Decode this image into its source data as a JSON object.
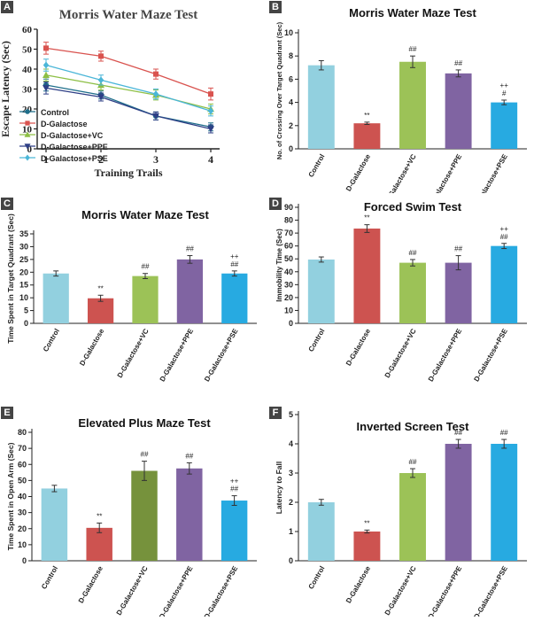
{
  "chart_data": [
    {
      "panel_label": "A",
      "type": "line",
      "title": "Morris Water Maze Test",
      "xlabel": "Training Trails",
      "ylabel": "Escape Latency (Sec)",
      "x": [
        1,
        2,
        3,
        4
      ],
      "xticks": [
        "1",
        "2",
        "3",
        "4"
      ],
      "ylim": [
        0,
        60
      ],
      "yticks": [
        "0",
        "10",
        "20",
        "30",
        "40",
        "50",
        "60"
      ],
      "series": [
        {
          "name": "Control",
          "color": "#1f6f8b",
          "marker": "circle",
          "values": [
            32,
            27,
            16.5,
            11
          ],
          "err": [
            3,
            2,
            2,
            2
          ]
        },
        {
          "name": "D-Galactose",
          "color": "#d9534f",
          "marker": "square",
          "values": [
            50.5,
            46.5,
            37.5,
            27.5
          ],
          "err": [
            3,
            2.5,
            2.5,
            3
          ]
        },
        {
          "name": "D-Galactose+VC",
          "color": "#8dbf45",
          "marker": "triangle",
          "values": [
            37,
            32,
            27,
            20
          ],
          "err": [
            3,
            2.5,
            2.5,
            2.5
          ]
        },
        {
          "name": "D-Galactose+PPE",
          "color": "#2e3f86",
          "marker": "triangle-down",
          "values": [
            30.5,
            26,
            16.5,
            10
          ],
          "err": [
            3,
            2,
            2,
            2
          ]
        },
        {
          "name": "D-Galactose+PSE",
          "color": "#4bb6d8",
          "marker": "diamond",
          "values": [
            42,
            34.5,
            27.5,
            19
          ],
          "err": [
            3,
            2.5,
            2.5,
            2.5
          ]
        }
      ]
    },
    {
      "panel_label": "B",
      "type": "bar",
      "title": "Morris Water Maze Test",
      "ylabel": "No. of Crossing Over Target Quadrant (Sec)",
      "categories": [
        "Control",
        "D-Galactose",
        "D-Galactose+VC",
        "D-Galactose+PPE",
        "D-Galactose+PSE"
      ],
      "values": [
        7.2,
        2.2,
        7.5,
        6.5,
        4.0
      ],
      "err": [
        0.4,
        0.1,
        0.5,
        0.3,
        0.2
      ],
      "annotations": [
        [],
        [
          "**"
        ],
        [
          "##"
        ],
        [
          "##"
        ],
        [
          "++",
          "#"
        ]
      ],
      "ylim": [
        0,
        10
      ],
      "yticks": [
        "0",
        "2",
        "4",
        "6",
        "8",
        "10"
      ]
    },
    {
      "panel_label": "C",
      "type": "bar",
      "title": "Morris Water Maze Test",
      "ylabel": "Time Spent in Target Quadrant (Sec)",
      "categories": [
        "Control",
        "D-Galactose",
        "D-Galactose+VC",
        "D-Galactose+PPE",
        "D-Galactose+PSE"
      ],
      "values": [
        19.5,
        9.8,
        18.5,
        25,
        19.5
      ],
      "err": [
        1,
        1.2,
        1,
        1.5,
        1
      ],
      "annotations": [
        [],
        [
          "**"
        ],
        [
          "##"
        ],
        [
          "##"
        ],
        [
          "++",
          "##"
        ]
      ],
      "ylim": [
        0,
        35
      ],
      "yticks": [
        "0",
        "5",
        "10",
        "15",
        "20",
        "25",
        "30",
        "35"
      ]
    },
    {
      "panel_label": "D",
      "type": "bar",
      "title": "Forced Swim Test",
      "ylabel": "Immobility Time (Sec)",
      "categories": [
        "Control",
        "D-Galactose",
        "D-Galactose+VC",
        "D-Galactose+PPE",
        "D-Galactose+PSE"
      ],
      "values": [
        49.5,
        73.5,
        47,
        47,
        60
      ],
      "err": [
        2,
        3,
        2.5,
        5.5,
        2
      ],
      "annotations": [
        [],
        [
          "**"
        ],
        [
          "##"
        ],
        [
          "##"
        ],
        [
          "++",
          "##"
        ]
      ],
      "ylim": [
        0,
        90
      ],
      "yticks": [
        "0",
        "10",
        "20",
        "30",
        "40",
        "50",
        "60",
        "70",
        "80",
        "90"
      ]
    },
    {
      "panel_label": "E",
      "type": "bar",
      "title": "Elevated Plus Maze Test",
      "ylabel": "Time Spent in Open Arm (Sec)",
      "categories": [
        "Control",
        "D-Galactose",
        "D-Galactose+VC",
        "D-Galactose+PPE",
        "D-Galactose+PSE"
      ],
      "values": [
        45,
        20.5,
        56,
        57.5,
        37.5
      ],
      "err": [
        2,
        3,
        6,
        3.5,
        3
      ],
      "annotations": [
        [],
        [
          "**"
        ],
        [
          "##"
        ],
        [
          "##"
        ],
        [
          "++",
          "##"
        ]
      ],
      "ylim": [
        0,
        80
      ],
      "yticks": [
        "0",
        "10",
        "20",
        "30",
        "40",
        "50",
        "60",
        "70",
        "80"
      ]
    },
    {
      "panel_label": "F",
      "type": "bar",
      "title": "Inverted Screen Test",
      "ylabel": "Latency to Fall",
      "categories": [
        "Control",
        "D-Galactose",
        "D-Galactose+VC",
        "D-Galactose+PPE",
        "D-Galactose+PSE"
      ],
      "values": [
        2,
        1,
        3,
        4,
        4
      ],
      "err": [
        0.1,
        0.05,
        0.15,
        0.15,
        0.15
      ],
      "annotations": [
        [],
        [
          "**"
        ],
        [
          "##"
        ],
        [
          "##"
        ],
        [
          "##"
        ]
      ],
      "ylim": [
        0,
        5
      ],
      "yticks": [
        "0",
        "1",
        "2",
        "3",
        "4",
        "5"
      ]
    }
  ],
  "bar_colors": [
    "#92d0df",
    "#cd5350",
    "#9cc257",
    "#8064a2",
    "#27aae1"
  ],
  "bar_colors_alt_E": [
    "#92d0df",
    "#cd5350",
    "#76923c",
    "#8064a2",
    "#27aae1"
  ]
}
